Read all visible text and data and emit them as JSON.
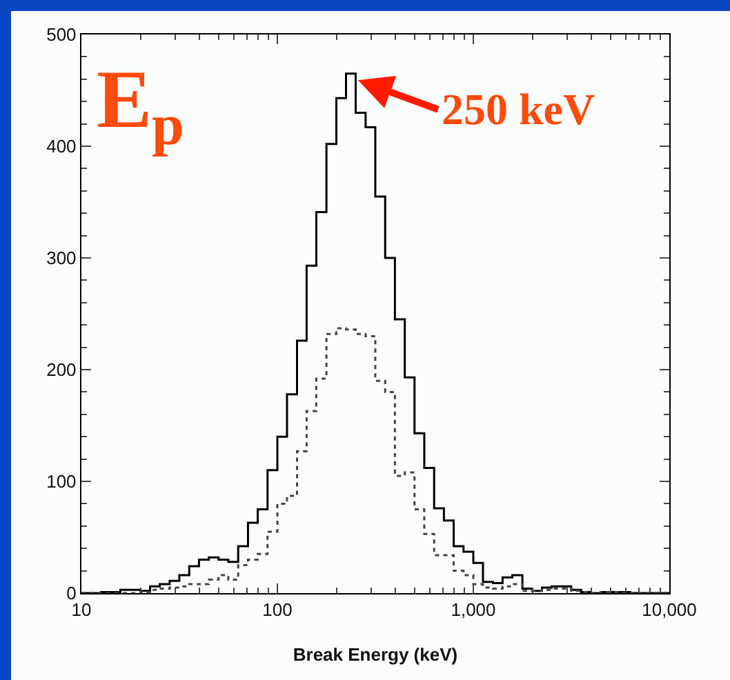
{
  "chart_data": {
    "type": "histogram",
    "xlabel": "Break Energy (keV)",
    "bins": [
      10,
      11.2,
      12.6,
      14.1,
      15.8,
      17.8,
      20,
      22.4,
      25.1,
      28.2,
      31.6,
      35.5,
      39.8,
      44.7,
      50.1,
      56.2,
      63.1,
      70.8,
      79.4,
      89.1,
      100,
      112,
      126,
      141,
      158,
      178,
      200,
      224,
      251,
      282,
      316,
      355,
      398,
      447,
      501,
      562,
      631,
      708,
      794,
      891,
      1000,
      1120,
      1260,
      1410,
      1580,
      1780,
      2000,
      2240,
      2510,
      2820,
      3160,
      3550,
      3980,
      4470,
      5010,
      5620,
      6310,
      7080,
      7940,
      8910,
      10000
    ],
    "series": [
      {
        "color": "#000000",
        "line_style": "solid",
        "values": [
          0,
          0,
          1,
          1,
          3,
          3,
          2,
          6,
          8,
          11,
          16,
          24,
          30,
          32,
          30,
          28,
          42,
          63,
          75,
          110,
          140,
          178,
          226,
          293,
          341,
          402,
          443,
          465,
          430,
          417,
          355,
          300,
          245,
          193,
          143,
          112,
          76,
          65,
          42,
          37,
          27,
          10,
          9,
          14,
          16,
          4,
          2,
          5,
          6,
          6,
          3,
          1,
          0,
          1,
          1,
          1,
          0,
          0,
          0,
          0
        ]
      },
      {
        "color": "#444444",
        "line_style": "dotted",
        "values": [
          0,
          0,
          0,
          0,
          0,
          0,
          1,
          3,
          4,
          5,
          6,
          8,
          8,
          12,
          16,
          12,
          25,
          30,
          35,
          55,
          80,
          87,
          127,
          163,
          192,
          232,
          237,
          236,
          232,
          230,
          190,
          180,
          105,
          108,
          75,
          53,
          34,
          34,
          20,
          16,
          8,
          5,
          4,
          6,
          8,
          2,
          2,
          3,
          4,
          4,
          2,
          1,
          0,
          1,
          1,
          0,
          0,
          0,
          0,
          0
        ]
      }
    ],
    "log": "x",
    "xlim": [
      10,
      10000
    ],
    "xticks": [
      10,
      100,
      {
        "value": 1000,
        "label": "1,000"
      },
      {
        "value": 10000,
        "label": "10,000"
      }
    ],
    "ylim": [
      0,
      500
    ],
    "yticks": [
      0,
      100,
      200,
      300,
      400,
      500
    ],
    "grid": false,
    "annotations": [
      "E$_{p}$",
      {
        "text": "250 keV",
        "x": 250,
        "y": 460
      }
    ]
  }
}
